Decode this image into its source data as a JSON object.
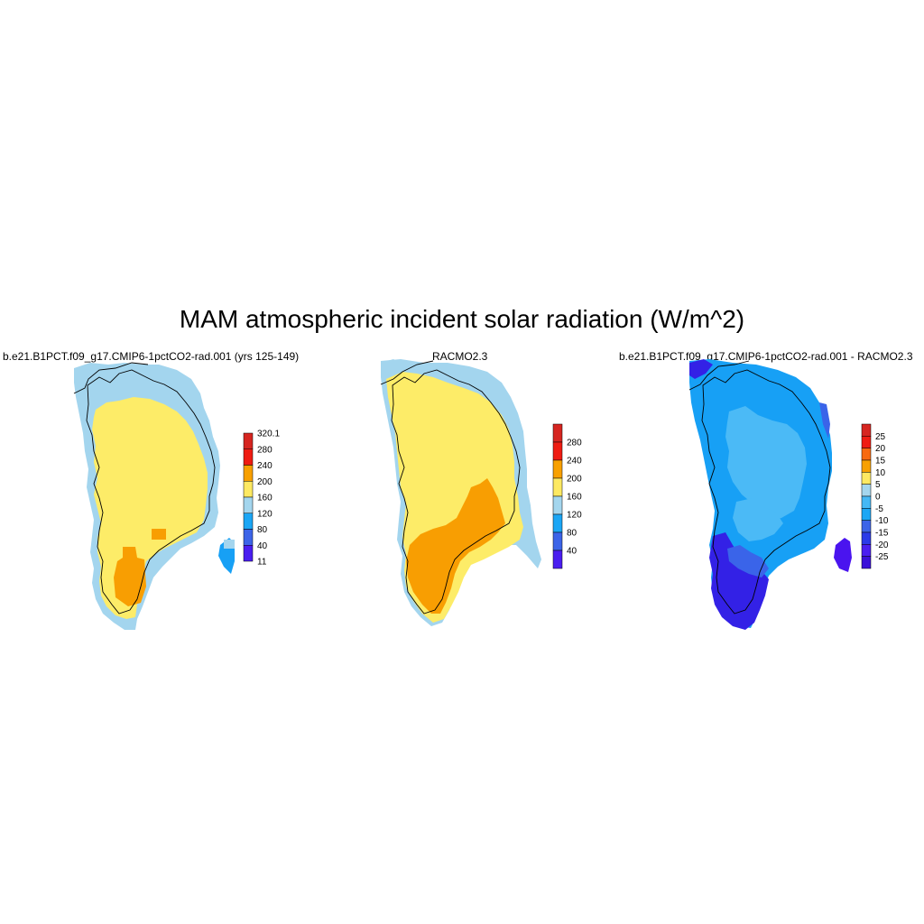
{
  "title": "MAM atmospheric incident solar radiation (W/m^2)",
  "panels": [
    {
      "id": "model",
      "subtitle": "b.e21.B1PCT.f09_g17.CMIP6-1pctCO2-rad.001 (yrs 125-149)",
      "colorbar_labels": [
        "320.1",
        "280",
        "240",
        "200",
        "160",
        "120",
        "80",
        "40",
        "11"
      ],
      "colorbar_colors": [
        "#d62520",
        "#ef1c12",
        "#f8a000",
        "#fde962",
        "#a4d6ee",
        "#1ba6f5",
        "#3c64e8",
        "#4a1ef0"
      ]
    },
    {
      "id": "obs",
      "subtitle": "RACMO2.3",
      "colorbar_labels": [
        "280",
        "240",
        "200",
        "160",
        "120",
        "80",
        "40"
      ],
      "colorbar_colors": [
        "#d62520",
        "#ef1c12",
        "#f8a000",
        "#fde962",
        "#a4d6ee",
        "#1ba6f5",
        "#3c64e8",
        "#4a1ef0"
      ]
    },
    {
      "id": "diff",
      "subtitle": "b.e21.B1PCT.f09_g17.CMIP6-1pctCO2-rad.001 - RACMO2.3",
      "colorbar_labels": [
        "25",
        "20",
        "15",
        "10",
        "5",
        "0",
        "-5",
        "-10",
        "-15",
        "-20",
        "-25"
      ],
      "colorbar_colors": [
        "#d62520",
        "#ef1c12",
        "#f86a10",
        "#f8a000",
        "#fde962",
        "#a4d6ee",
        "#45b8f5",
        "#1ba6f5",
        "#3c64e8",
        "#2a3ae8",
        "#4a1ef0",
        "#3a10d8"
      ]
    }
  ],
  "map_colors": {
    "yellow": "#fdec68",
    "orange": "#f89e02",
    "lightblue": "#a3d5ee",
    "medblue": "#17a0f5",
    "skyblue": "#4bbaf6",
    "royalblue": "#3a64e9",
    "deepblue": "#3321e6",
    "violet": "#4a14ef"
  }
}
